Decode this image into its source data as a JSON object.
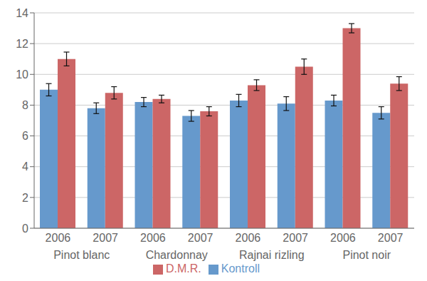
{
  "chart_data": {
    "type": "bar",
    "categories": [
      "2006",
      "2007",
      "2006",
      "2007",
      "2006",
      "2007",
      "2006",
      "2007"
    ],
    "groups": [
      "Pinot blanc",
      "Chardonnay",
      "Rajnai rizling",
      "Pinot noir"
    ],
    "series": [
      {
        "name": "Kontroll",
        "color": "#6699CC",
        "values": [
          9.0,
          7.8,
          8.2,
          7.3,
          8.3,
          8.1,
          8.3,
          7.5
        ],
        "errors": [
          0.4,
          0.35,
          0.3,
          0.35,
          0.4,
          0.45,
          0.35,
          0.4
        ]
      },
      {
        "name": "D.M.R.",
        "color": "#CC6666",
        "values": [
          11.0,
          8.8,
          8.4,
          7.6,
          9.3,
          10.5,
          13.0,
          9.4
        ],
        "errors": [
          0.45,
          0.4,
          0.25,
          0.3,
          0.35,
          0.5,
          0.3,
          0.45
        ]
      }
    ],
    "ylim": [
      0,
      14
    ],
    "yticks": [
      0,
      2,
      4,
      6,
      8,
      10,
      12,
      14
    ],
    "grid": true,
    "legend": "bottom"
  }
}
